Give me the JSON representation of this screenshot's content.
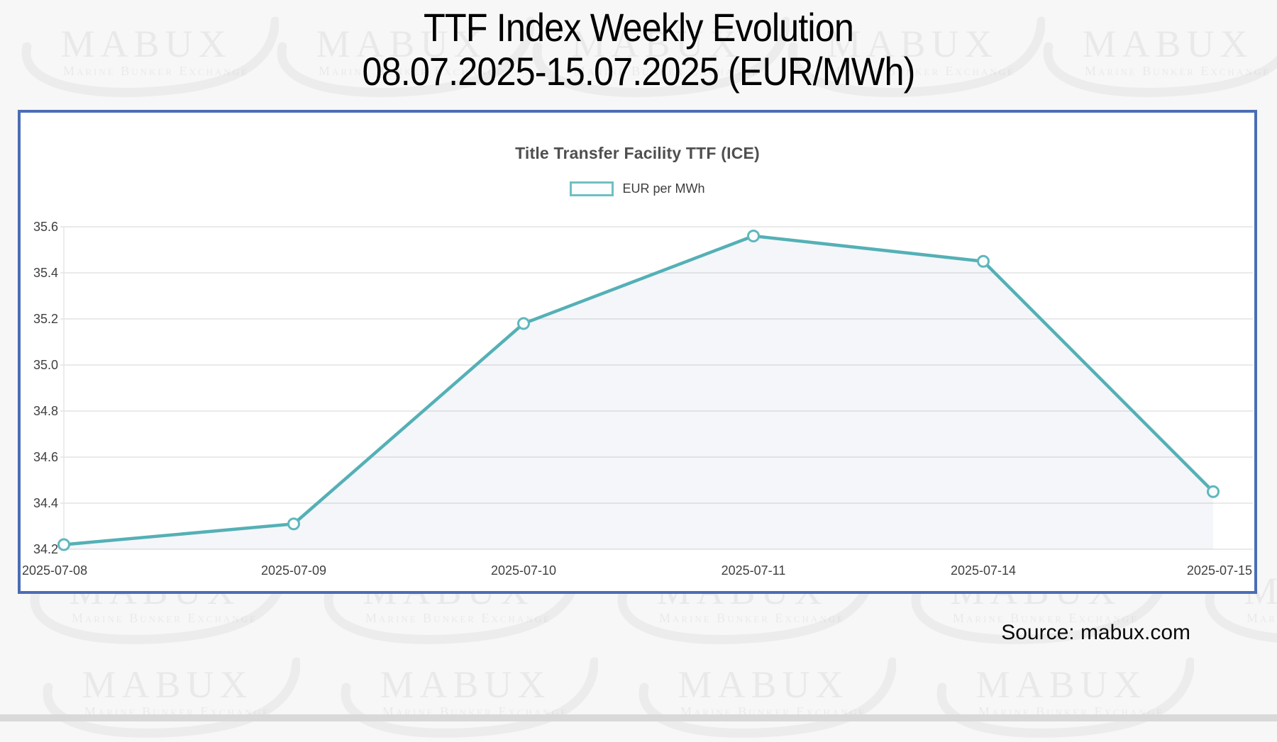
{
  "page": {
    "title_line1": "TTF Index Weekly Evolution",
    "title_line2": "08.07.2025-15.07.2025 (EUR/MWh)",
    "source": "Source: mabux.com",
    "watermark": {
      "brand": "MABUX",
      "tagline": "Marine Bunker Exchange"
    }
  },
  "chart_data": {
    "type": "line",
    "title": "Title Transfer Facility TTF (ICE)",
    "x": [
      "2025-07-08",
      "2025-07-09",
      "2025-07-10",
      "2025-07-11",
      "2025-07-14",
      "2025-07-15"
    ],
    "series": [
      {
        "name": "EUR per MWh",
        "values": [
          34.22,
          34.31,
          35.18,
          35.56,
          35.45,
          34.45
        ]
      }
    ],
    "xlabel": "",
    "ylabel": "EUR per MWh",
    "ylim": [
      34.2,
      35.6
    ],
    "ytick_labels": [
      "34.2",
      "34.4",
      "34.6",
      "34.8",
      "35.0",
      "35.2",
      "35.4",
      "35.6"
    ],
    "grid": true,
    "legend_position": "top",
    "colors": {
      "line": "#54b0b6",
      "marker_stroke": "#5fb7bd",
      "marker_fill": "#fafdfd",
      "area_fill": "rgba(66,110,160,0.06)",
      "gridline": "#e4e4e4",
      "axis_text": "#3f3f3f",
      "panel_border": "#4a6db5",
      "legend_swatch_border": "#6fbfc4"
    }
  }
}
